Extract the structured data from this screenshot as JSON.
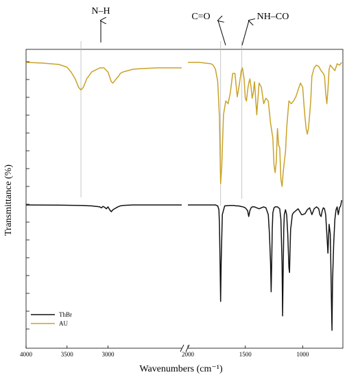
{
  "chart_data": {
    "type": "line",
    "xlabel": "Wavenumbers (cm⁻¹)",
    "ylabel": "Transmittance (%)",
    "x_reversed": true,
    "x_break": [
      2000,
      2100
    ],
    "xlim": [
      650,
      4000
    ],
    "x_ticks": [
      {
        "value": 4000,
        "label": "4000"
      },
      {
        "value": 3500,
        "label": "3500"
      },
      {
        "value": 3000,
        "label": "3000"
      },
      {
        "value": 2000,
        "label": "2000"
      },
      {
        "value": 1500,
        "label": "1500"
      },
      {
        "value": 1000,
        "label": "1000"
      }
    ],
    "legend": [
      {
        "name": "ThBr",
        "color": "#111111"
      },
      {
        "name": "AU",
        "color": "#c9a227"
      }
    ],
    "legend_position": "bottom-left",
    "annotations": [
      {
        "label": "N–H",
        "x": 3330
      },
      {
        "label": "C=O",
        "x": 1715
      },
      {
        "label": "NH–CO",
        "x": 1530
      }
    ],
    "series": [
      {
        "name": "AU",
        "color": "#c9a227",
        "x": [
          4000,
          3800,
          3600,
          3500,
          3450,
          3400,
          3360,
          3330,
          3300,
          3260,
          3200,
          3100,
          3050,
          3000,
          2960,
          2940,
          2900,
          2870,
          2850,
          2820,
          2700,
          2600,
          2400,
          2200,
          2100,
          2000,
          1900,
          1850,
          1800,
          1780,
          1760,
          1740,
          1725,
          1715,
          1705,
          1690,
          1670,
          1650,
          1630,
          1610,
          1590,
          1570,
          1550,
          1535,
          1525,
          1510,
          1500,
          1490,
          1480,
          1470,
          1460,
          1450,
          1440,
          1430,
          1420,
          1400,
          1380,
          1360,
          1340,
          1320,
          1300,
          1280,
          1260,
          1250,
          1240,
          1230,
          1220,
          1210,
          1200,
          1190,
          1180,
          1170,
          1160,
          1150,
          1140,
          1130,
          1120,
          1100,
          1080,
          1060,
          1040,
          1020,
          1000,
          990,
          980,
          970,
          960,
          950,
          940,
          930,
          920,
          900,
          880,
          860,
          840,
          820,
          810,
          800,
          790,
          780,
          770,
          760,
          740,
          720,
          700,
          680,
          660
        ],
        "y": [
          100,
          99.5,
          98.5,
          96.5,
          93,
          88,
          82,
          80,
          82,
          88,
          93,
          96,
          96,
          93,
          86,
          85,
          88,
          90,
          92,
          93,
          95,
          95.5,
          96,
          96,
          96,
          100,
          100,
          99.5,
          99,
          98,
          95,
          86,
          60,
          12,
          25,
          62,
          72,
          70,
          78,
          92,
          92,
          75,
          85,
          94,
          96,
          88,
          74,
          72,
          80,
          85,
          88,
          82,
          74,
          78,
          86,
          62,
          85,
          82,
          70,
          74,
          72,
          56,
          45,
          25,
          20,
          28,
          52,
          40,
          38,
          15,
          10,
          20,
          28,
          35,
          52,
          62,
          72,
          70,
          72,
          75,
          80,
          85,
          82,
          70,
          60,
          52,
          48,
          52,
          62,
          72,
          90,
          96,
          98,
          97,
          94,
          92,
          90,
          78,
          70,
          80,
          95,
          98,
          96,
          94,
          99,
          98,
          100
        ]
      },
      {
        "name": "ThBr",
        "color": "#111111",
        "x": [
          4000,
          3600,
          3400,
          3300,
          3200,
          3100,
          3080,
          3060,
          3040,
          3020,
          3000,
          2980,
          2960,
          2940,
          2920,
          2900,
          2880,
          2850,
          2820,
          2700,
          2500,
          2300,
          2100,
          2000,
          1900,
          1800,
          1760,
          1740,
          1730,
          1725,
          1720,
          1715,
          1710,
          1700,
          1680,
          1640,
          1600,
          1580,
          1560,
          1540,
          1520,
          1500,
          1480,
          1470,
          1460,
          1450,
          1440,
          1420,
          1400,
          1380,
          1360,
          1340,
          1320,
          1300,
          1290,
          1280,
          1275,
          1270,
          1265,
          1260,
          1250,
          1240,
          1220,
          1200,
          1190,
          1180,
          1175,
          1170,
          1165,
          1160,
          1150,
          1140,
          1130,
          1120,
          1115,
          1110,
          1105,
          1100,
          1090,
          1080,
          1060,
          1040,
          1030,
          1020,
          1010,
          1000,
          980,
          960,
          950,
          940,
          920,
          900,
          880,
          860,
          850,
          840,
          830,
          820,
          810,
          800,
          790,
          780,
          770,
          760,
          755,
          750,
          745,
          740,
          730,
          720,
          710,
          700,
          690,
          680,
          670,
          660
        ],
        "y": [
          0,
          -0.2,
          -0.4,
          -0.6,
          -1,
          -2,
          -3,
          -1.5,
          -2.5,
          -4,
          -2,
          -5,
          -7,
          -5,
          -4,
          -3,
          -2,
          -1,
          -0.5,
          0,
          0,
          0,
          0,
          0,
          0,
          0,
          0,
          -1,
          -5,
          -20,
          -60,
          -100,
          -60,
          -10,
          -1,
          -0.5,
          -0.5,
          -1,
          -1,
          -1.5,
          -2,
          -3,
          -6,
          -12,
          -6,
          -3,
          -2,
          -2,
          -3,
          -4,
          -3,
          -2,
          -3,
          -10,
          -30,
          -60,
          -90,
          -60,
          -25,
          -8,
          -3,
          -2,
          -2,
          -4,
          -15,
          -60,
          -115,
          -70,
          -25,
          -10,
          -5,
          -10,
          -30,
          -65,
          -70,
          -45,
          -25,
          -20,
          -10,
          -8,
          -6,
          -4,
          -6,
          -8,
          -10,
          -10,
          -9,
          -5,
          -4,
          -3,
          -10,
          -4,
          -2,
          -4,
          -10,
          -12,
          -6,
          -3,
          -4,
          -10,
          -30,
          -50,
          -20,
          -30,
          -60,
          -100,
          -130,
          -80,
          -40,
          -15,
          -5,
          -2,
          -10,
          -3,
          -1,
          5
        ]
      }
    ]
  }
}
